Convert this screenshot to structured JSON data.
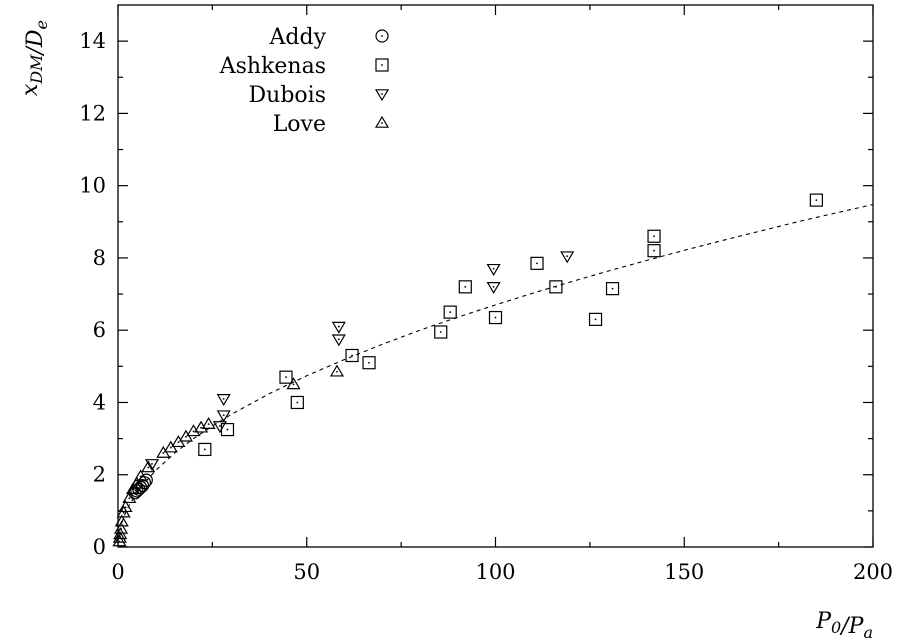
{
  "chart_data": {
    "type": "scatter",
    "title": "",
    "xlabel": "P_0/P_a",
    "ylabel": "x_DM/D_e",
    "xlim": [
      0,
      200
    ],
    "ylim": [
      0,
      15
    ],
    "x_ticks": [
      0,
      50,
      100,
      150,
      200
    ],
    "y_ticks": [
      0,
      2,
      4,
      6,
      8,
      10,
      12,
      14
    ],
    "x_tick_labels": [
      "0",
      "50",
      "100",
      "150",
      "200"
    ],
    "y_tick_labels": [
      "0",
      "2",
      "4",
      "6",
      "8",
      "10",
      "12",
      "14"
    ],
    "grid": false,
    "legend_position": "top-left",
    "series": [
      {
        "name": "Addy",
        "marker": "circle",
        "points": [
          [
            4.5,
            1.5
          ],
          [
            5.0,
            1.55
          ],
          [
            5.5,
            1.6
          ],
          [
            6.0,
            1.65
          ],
          [
            6.5,
            1.7
          ],
          [
            7.0,
            1.78
          ],
          [
            7.5,
            1.85
          ]
        ]
      },
      {
        "name": "Ashkenas",
        "marker": "square",
        "points": [
          [
            185,
            9.6
          ],
          [
            142,
            8.6
          ],
          [
            142,
            8.2
          ],
          [
            111,
            7.85
          ],
          [
            116,
            7.2
          ],
          [
            131,
            7.15
          ],
          [
            126.5,
            6.3
          ],
          [
            92,
            7.2
          ],
          [
            88,
            6.5
          ],
          [
            100,
            6.35
          ],
          [
            85.5,
            5.95
          ],
          [
            62,
            5.3
          ],
          [
            66.5,
            5.1
          ],
          [
            44.5,
            4.7
          ],
          [
            47.5,
            4.0
          ],
          [
            29,
            3.25
          ],
          [
            23,
            2.7
          ]
        ]
      },
      {
        "name": "Dubois",
        "marker": "triangle-down",
        "points": [
          [
            119,
            8.05
          ],
          [
            99.5,
            7.7
          ],
          [
            99.5,
            7.2
          ],
          [
            58.5,
            6.1
          ],
          [
            58.5,
            5.75
          ],
          [
            28,
            4.1
          ],
          [
            28,
            3.65
          ],
          [
            27,
            3.35
          ],
          [
            9,
            2.3
          ]
        ]
      },
      {
        "name": "Love",
        "marker": "triangle-up",
        "points": [
          [
            58,
            4.85
          ],
          [
            46.5,
            4.5
          ],
          [
            24,
            3.4
          ],
          [
            22,
            3.3
          ],
          [
            20,
            3.2
          ],
          [
            18,
            3.05
          ],
          [
            16,
            2.9
          ],
          [
            14,
            2.75
          ],
          [
            12,
            2.6
          ],
          [
            8,
            2.2
          ],
          [
            6,
            1.95
          ],
          [
            5,
            1.75
          ],
          [
            4,
            1.6
          ],
          [
            3,
            1.35
          ],
          [
            2,
            1.1
          ],
          [
            1.5,
            0.95
          ],
          [
            1,
            0.7
          ],
          [
            0.8,
            0.5
          ],
          [
            0.6,
            0.35
          ],
          [
            0.5,
            0.25
          ],
          [
            0.4,
            0.15
          ]
        ]
      }
    ],
    "fit_line": {
      "style": "dashed",
      "x": [
        1,
        2,
        3,
        5,
        7,
        10,
        15,
        20,
        25,
        30,
        40,
        50,
        60,
        70,
        80,
        90,
        100,
        110,
        120,
        130,
        140,
        150,
        160,
        170,
        180,
        190,
        200
      ],
      "y": [
        0.67,
        0.95,
        1.16,
        1.5,
        1.77,
        2.12,
        2.6,
        3.0,
        3.35,
        3.67,
        4.24,
        4.74,
        5.19,
        5.61,
        6.0,
        6.36,
        6.7,
        7.03,
        7.34,
        7.64,
        7.93,
        8.21,
        8.48,
        8.74,
        9.0,
        9.24,
        9.48
      ]
    }
  }
}
